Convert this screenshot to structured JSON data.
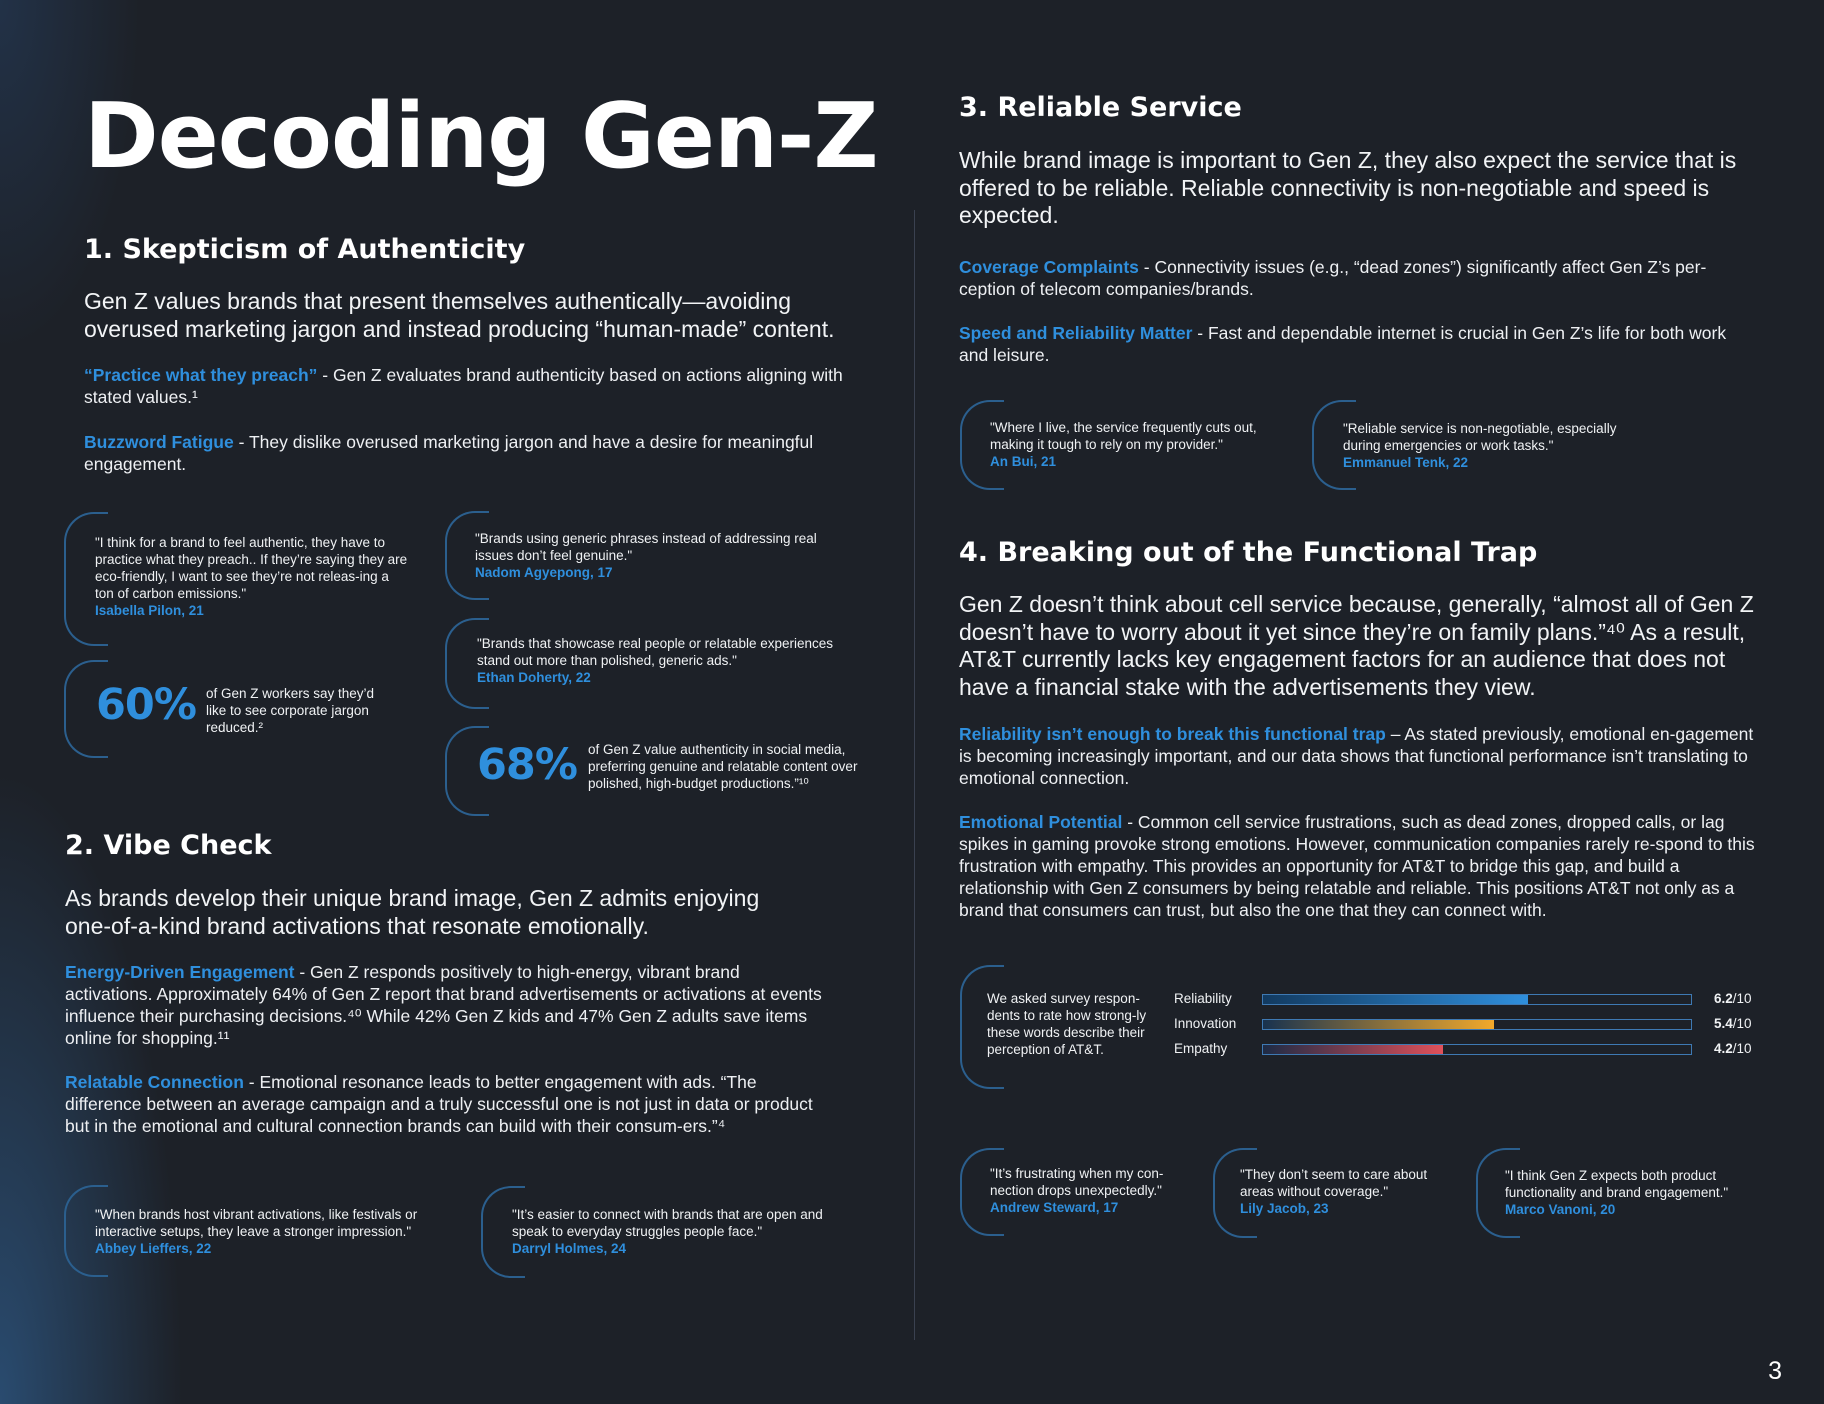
{
  "title": "Decoding Gen-Z",
  "page_number": "3",
  "section1": {
    "heading": "1. Skepticism of Authenticity",
    "lead": "Gen Z values brands that present themselves authentically—avoiding overused marketing jargon and instead producing “human-made” content.",
    "points": [
      {
        "label": "“Practice what they preach”",
        "text": " - Gen Z evaluates brand authenticity based on actions aligning with stated values.¹"
      },
      {
        "label": "Buzzword Fatigue",
        "text": " - They dislike overused marketing jargon and have a desire for meaningful engagement."
      }
    ],
    "quotes": [
      {
        "text": "\"I think for a brand to feel authentic, they have to practice what they preach.. If they’re saying they are eco-friendly, I want to see they’re not releas-ing a ton of carbon emissions.\"",
        "name": "Isabella Pilon, 21"
      },
      {
        "text": "\"Brands using generic phrases instead of addressing real issues don’t feel genuine.\"",
        "name": "Nadom Agyepong, 17"
      },
      {
        "text": "\"Brands that showcase real people or relatable experiences stand out more than polished, generic ads.\"",
        "name": "Ethan Doherty, 22"
      }
    ],
    "stats": [
      {
        "value": "60%",
        "text": "of Gen Z workers say they’d like to see corporate jargon reduced.²"
      },
      {
        "value": "68%",
        "text": "of Gen Z value authenticity in social media, preferring genuine and relatable content over polished, high-budget productions.”¹⁰"
      }
    ]
  },
  "section2": {
    "heading": "2. Vibe Check",
    "lead": "As brands develop their unique brand image, Gen Z admits enjoying one-of-a-kind brand activations that resonate emotionally.",
    "points": [
      {
        "label": "Energy-Driven Engagement",
        "text": " - Gen Z responds positively to high-energy, vibrant brand activations. Approximately 64% of Gen Z report that brand advertisements or activations at events influence their purchasing decisions.⁴⁰ While 42% Gen Z kids and 47% Gen Z adults save items online for shopping.¹¹"
      },
      {
        "label": "Relatable Connection",
        "text": " - Emotional resonance leads to better engagement with ads. “The difference between an average campaign and a truly successful one is not just in data or product but in the emotional and cultural connection brands can build with their consum-ers.”⁴"
      }
    ],
    "quotes": [
      {
        "text": "\"When brands host vibrant activations, like festivals or interactive setups, they leave a stronger impression.\"",
        "name": "Abbey Lieffers, 22"
      },
      {
        "text": "\"It’s easier to connect with brands that are open and speak to everyday struggles people face.\"",
        "name": "Darryl Holmes, 24"
      }
    ]
  },
  "section3": {
    "heading": "3. Reliable Service",
    "lead": "While brand image is important to Gen Z, they also expect the service that is offered to be reliable. Reliable connectivity is non-negotiable and speed is expected.",
    "points": [
      {
        "label": "Coverage Complaints",
        "text": " - Connectivity issues (e.g., “dead zones”) significantly affect Gen Z’s per-ception of telecom companies/brands."
      },
      {
        "label": "Speed and Reliability Matter",
        "text": " - Fast and dependable internet is crucial in Gen Z’s life for both work and leisure."
      }
    ],
    "quotes": [
      {
        "text": "\"Where I live, the service frequently cuts out, making it tough to rely on my provider.\"",
        "name": "An Bui, 21"
      },
      {
        "text": "\"Reliable service is non-negotiable, especially during emergencies or work tasks.\"",
        "name": "Emmanuel Tenk, 22"
      }
    ]
  },
  "section4": {
    "heading": "4. Breaking out of the Functional Trap",
    "lead": "Gen Z doesn’t think about cell service because, generally, “almost all of Gen Z doesn’t have to worry about it yet since they’re on family plans.”⁴⁰ As a result, AT&T currently lacks key engagement factors for an audience that does not have a financial stake with the advertisements they view.",
    "points": [
      {
        "label": "Reliability isn’t enough to break this functional trap",
        "text": " – As stated previously, emotional en-gagement is becoming increasingly important, and our data shows that functional performance isn’t translating to emotional connection."
      },
      {
        "label": "Emotional Potential",
        "text": " - Common cell service frustrations, such as dead zones, dropped calls, or lag spikes in gaming provoke strong emotions. However, communication companies rarely re-spond to this frustration with empathy. This provides an opportunity for AT&T to bridge this gap, and build a relationship with Gen Z consumers by being relatable and reliable. This positions AT&T not only as a brand that consumers can trust, but also the one that they can connect with."
      }
    ],
    "survey": {
      "intro": "We asked survey respon-dents to rate how strong-ly these words describe their perception of AT&T.",
      "suffix": "/10",
      "max": 10,
      "items": [
        {
          "label": "Reliability",
          "value": 6.2,
          "display": "6.2",
          "color_from": "#123a60",
          "color_to": "#2f8fdd"
        },
        {
          "label": "Innovation",
          "value": 5.4,
          "display": "5.4",
          "color_from": "#18324f",
          "color_to": "#f2a92b"
        },
        {
          "label": "Empathy",
          "value": 4.2,
          "display": "4.2",
          "color_from": "#1d2b45",
          "color_to": "#e0505a"
        }
      ]
    },
    "quotes": [
      {
        "text": "\"It’s frustrating when my con-nection drops unexpectedly.\"",
        "name": "Andrew Steward, 17"
      },
      {
        "text": "\"They don’t seem to care about areas without coverage.\"",
        "name": "Lily Jacob, 23"
      },
      {
        "text": "\"I think Gen Z expects both product functionality and brand engagement.\"",
        "name": "Marco Vanoni, 20"
      }
    ]
  },
  "colors": {
    "accent": "#2f8fdd",
    "background": "#1d2128",
    "bracket": "#2b5f8e"
  }
}
